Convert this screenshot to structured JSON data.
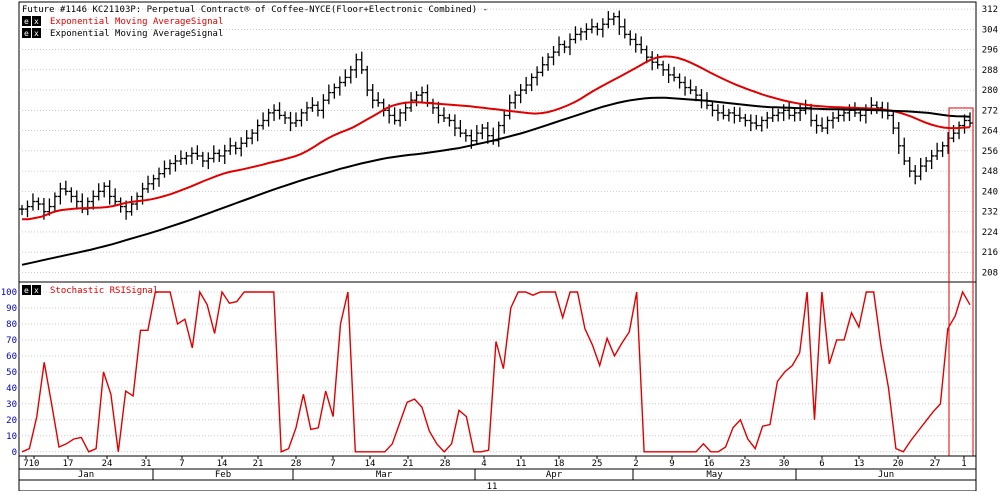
{
  "chart_data": [
    {
      "type": "line",
      "title": "Future #1146 KC21103P: Perpetual Contract® of Coffee-NYCE(Floor+Electronic Combined) -",
      "legend": [
        {
          "label": "Exponential Moving AverageSignal",
          "color": "#e00000"
        },
        {
          "label": "Exponential Moving AverageSignal",
          "color": "#000000"
        }
      ],
      "legend_badges": [
        "e",
        "x",
        "e",
        "x"
      ],
      "ylim": [
        205,
        314
      ],
      "yticks": [
        208,
        216,
        224,
        232,
        240,
        248,
        256,
        264,
        272,
        280,
        288,
        296,
        304,
        312
      ],
      "grid": true,
      "price_bars": {
        "closes": [
          233,
          234,
          236,
          235,
          232,
          234,
          238,
          241,
          240,
          238,
          236,
          233,
          236,
          238,
          240,
          242,
          238,
          236,
          234,
          232,
          235,
          238,
          241,
          243,
          245,
          247,
          249,
          251,
          252,
          253,
          254,
          255,
          254,
          252,
          253,
          255,
          254,
          256,
          258,
          257,
          259,
          261,
          263,
          266,
          268,
          271,
          272,
          270,
          269,
          267,
          268,
          271,
          273,
          274,
          272,
          276,
          279,
          281,
          283,
          285,
          288,
          292,
          288,
          280,
          276,
          275,
          272,
          270,
          268,
          271,
          273,
          276,
          278,
          279,
          275,
          273,
          270,
          269,
          268,
          265,
          263,
          262,
          260,
          263,
          265,
          262,
          260,
          266,
          270,
          275,
          278,
          280,
          282,
          285,
          287,
          290,
          293,
          295,
          298,
          297,
          300,
          302,
          303,
          304,
          305,
          304,
          306,
          308,
          309,
          305,
          302,
          300,
          298,
          296,
          293,
          291,
          290,
          288,
          286,
          285,
          283,
          281,
          280,
          278,
          276,
          274,
          272,
          271,
          270,
          271,
          270,
          269,
          268,
          267,
          266,
          268,
          269,
          270,
          271,
          272,
          270,
          271,
          272,
          273,
          268,
          266,
          265,
          268,
          269,
          270,
          271,
          272,
          271,
          270,
          272,
          274,
          273,
          272,
          270,
          265,
          258,
          252,
          248,
          246,
          250,
          252,
          254,
          256,
          258,
          261,
          263,
          266,
          268,
          267
        ],
        "color": "#000000"
      },
      "series": [
        {
          "name": "Exponential Moving AverageSignal",
          "color": "#e00000",
          "values": [
            229,
            229,
            229.5,
            230,
            231,
            232,
            232.6,
            232.9,
            233.1,
            233.3,
            233.4,
            233.5,
            233.6,
            233.8,
            234.2,
            234.8,
            235.5,
            235.9,
            236.2,
            236.5,
            236.9,
            237.5,
            238.2,
            239,
            239.9,
            240.9,
            241.9,
            243,
            244.1,
            245.1,
            246.1,
            247,
            247.7,
            248.2,
            248.7,
            249.3,
            249.9,
            250.5,
            251.2,
            251.8,
            252.4,
            253.1,
            253.8,
            254.8,
            256.1,
            257.6,
            259.3,
            260.8,
            262.1,
            263.2,
            264.2,
            265.3,
            266.7,
            268.2,
            269.6,
            271.1,
            272.7,
            273.8,
            274.5,
            275,
            275.2,
            275.2,
            275,
            274.8,
            274.6,
            274.4,
            274.2,
            274,
            273.8,
            273.6,
            273.3,
            273,
            272.7,
            272.4,
            272.1,
            271.8,
            271.5,
            271.2,
            270.9,
            270.7,
            270.9,
            271.3,
            272,
            272.9,
            273.9,
            275.1,
            276.5,
            278.1,
            279.7,
            281.1,
            282.5,
            283.9,
            285.2,
            286.6,
            288,
            289.4,
            290.9,
            292.2,
            293,
            293.3,
            293.2,
            292.7,
            291.9,
            290.8,
            289.6,
            288.3,
            286.9,
            285.6,
            284.4,
            283.2,
            282.1,
            281.1,
            280.1,
            279.2,
            278.3,
            277.5,
            276.8,
            276.1,
            275.5,
            275,
            274.5,
            274.1,
            273.8,
            273.6,
            273.4,
            273.3,
            273.2,
            273.1,
            273,
            272.9,
            272.8,
            272.7,
            272.5,
            272.2,
            271.8,
            271.2,
            270.4,
            269.5,
            268.4,
            267.3,
            266.4,
            265.7,
            265.2,
            265,
            265,
            265.2,
            265.3
          ]
        },
        {
          "name": "Exponential Moving AverageSignal",
          "color": "#000000",
          "values": [
            211,
            211.6,
            212.2,
            212.8,
            213.4,
            214,
            214.6,
            215.2,
            215.8,
            216.4,
            217,
            217.7,
            218.4,
            219.1,
            219.9,
            220.7,
            221.5,
            222.3,
            223.1,
            223.9,
            224.8,
            225.7,
            226.6,
            227.5,
            228.4,
            229.4,
            230.4,
            231.4,
            232.4,
            233.4,
            234.4,
            235.4,
            236.4,
            237.4,
            238.4,
            239.4,
            240.4,
            241.3,
            242.2,
            243.1,
            244,
            244.9,
            245.7,
            246.5,
            247.3,
            248.1,
            248.9,
            249.6,
            250.3,
            251,
            251.6,
            252.2,
            252.8,
            253.3,
            253.7,
            254.1,
            254.4,
            254.7,
            255,
            255.4,
            255.8,
            256.2,
            256.6,
            257,
            257.6,
            258.2,
            258.8,
            259.4,
            260,
            260.7,
            261.4,
            262.1,
            262.8,
            263.6,
            264.5,
            265.4,
            266.3,
            267.2,
            268.1,
            269,
            269.9,
            270.8,
            271.7,
            272.6,
            273.5,
            274.2,
            274.9,
            275.5,
            276,
            276.4,
            276.7,
            276.9,
            277,
            277,
            276.8,
            276.6,
            276.4,
            276.2,
            276,
            275.8,
            275.5,
            275.2,
            274.9,
            274.6,
            274.3,
            274,
            273.7,
            273.5,
            273.3,
            273.2,
            273.1,
            273,
            272.9,
            272.8,
            272.7,
            272.6,
            272.5,
            272.4,
            272.4,
            272.3,
            272.3,
            272.3,
            272.2,
            272.1,
            272,
            271.9,
            271.8,
            271.7,
            271.6,
            271.4,
            271.2,
            271,
            270.6,
            270.2,
            269.9,
            269.7,
            269.6,
            269.5
          ]
        }
      ]
    },
    {
      "type": "line",
      "title": "Stochastic RSISignal",
      "legend_badges": [
        "e",
        "x"
      ],
      "ylim": [
        -2,
        105
      ],
      "yticks": [
        0,
        10,
        20,
        30,
        40,
        50,
        60,
        70,
        80,
        90,
        100
      ],
      "grid": true,
      "series": [
        {
          "name": "Stochastic RSISignal",
          "color": "#e00000",
          "values": [
            0,
            2,
            22,
            56,
            30,
            3,
            5,
            8,
            9,
            0,
            2,
            50,
            36,
            0,
            38,
            35,
            76,
            76,
            100,
            100,
            100,
            80,
            83,
            65,
            100,
            92,
            74,
            100,
            93,
            94,
            100,
            100,
            100,
            100,
            100,
            0,
            2,
            15,
            36,
            14,
            15,
            38,
            22,
            80,
            100,
            0,
            0,
            0,
            0,
            0,
            5,
            18,
            31,
            33,
            28,
            13,
            5,
            0,
            5,
            26,
            22,
            0,
            0,
            1,
            69,
            52,
            90,
            100,
            100,
            98,
            100,
            100,
            100,
            84,
            100,
            100,
            77,
            67,
            54,
            71,
            60,
            68,
            75,
            100,
            0,
            0,
            0,
            0,
            0,
            0,
            0,
            0,
            5,
            0,
            0,
            3,
            15,
            20,
            8,
            2,
            16,
            17,
            44,
            50,
            54,
            62,
            100,
            20,
            100,
            55,
            70,
            70,
            87,
            78,
            100,
            100,
            66,
            40,
            2,
            0,
            7,
            13,
            19,
            25,
            30,
            77,
            85,
            100,
            92
          ]
        }
      ],
      "cursor_box": {
        "color": "#e00000"
      }
    }
  ],
  "x_axis": {
    "day_ticks": [
      "7",
      "10",
      "17",
      "24",
      "31",
      "7",
      "14",
      "21",
      "28",
      "7",
      "14",
      "21",
      "28",
      "4",
      "11",
      "18",
      "25",
      "2",
      "9",
      "16",
      "23",
      "30",
      "6",
      "13",
      "20",
      "27",
      "1"
    ],
    "months": [
      "Jan",
      "Feb",
      "Mar",
      "Apr",
      "May",
      "Jun"
    ],
    "year": "11"
  }
}
